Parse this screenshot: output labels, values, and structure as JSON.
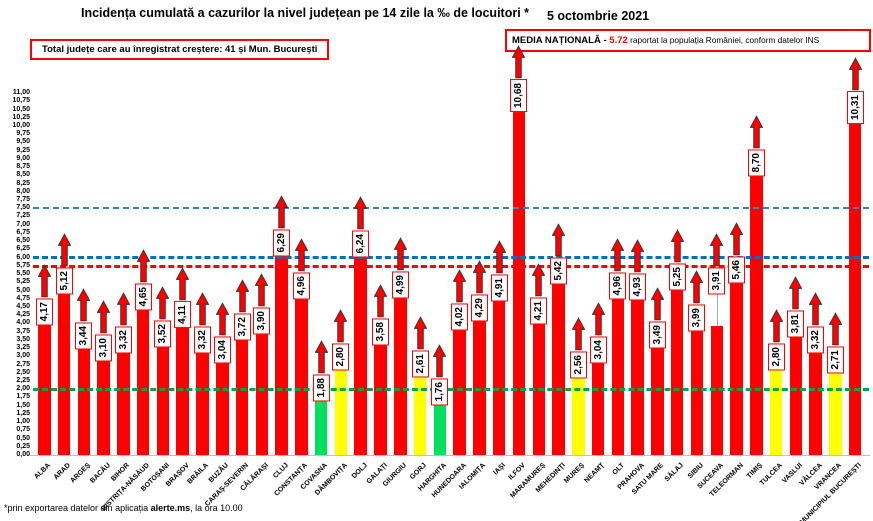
{
  "header": {
    "title": "Incidența cumulată a cazurilor la nivel județean pe 14 zile la ‰ de locuitori *",
    "date": "5 octombrie 2021"
  },
  "growth_box": {
    "text": "Total județe care au înregistrat creștere:  41 și Mun. București"
  },
  "media_box": {
    "label": "MEDIA NAȚIONALĂ",
    "separator": " - ",
    "value": "5.72",
    "suffix": " raportat la populația României, conform datelor INS"
  },
  "footnote": {
    "prefix": "*prin exportarea datelor din aplicația ",
    "bold": "alerte.ms",
    "suffix": ", la ora 10.00"
  },
  "chart_data": {
    "type": "bar",
    "title": "Incidența cumulată a cazurilor la nivel județean pe 14 zile la ‰ de locuitori *",
    "xlabel": "",
    "ylabel": "",
    "ylim": [
      0,
      11
    ],
    "ytick_step": 0.25,
    "grid": false,
    "legend": "none",
    "decimal_separator": ",",
    "categories": [
      "ALBA",
      "ARAD",
      "ARGEȘ",
      "BACĂU",
      "BIHOR",
      "BISTRIȚA-NĂSĂUD",
      "BOTOȘANI",
      "BRAȘOV",
      "BRĂILA",
      "BUZĂU",
      "CARAȘ-SEVERIN",
      "CĂLĂRAȘI",
      "CLUJ",
      "CONSTANȚA",
      "COVASNA",
      "DÂMBOVIȚA",
      "DOLJ",
      "GALAȚI",
      "GIURGIU",
      "GORJ",
      "HARGHITA",
      "HUNEDOARA",
      "IALOMIȚA",
      "IAȘI",
      "ILFOV",
      "MARAMUREȘ",
      "MEHEDINȚI",
      "MUREȘ",
      "NEAMȚ",
      "OLT",
      "PRAHOVA",
      "SATU MARE",
      "SĂLAJ",
      "SIBIU",
      "SUCEAVA",
      "TELEORMAN",
      "TIMIȘ",
      "TULCEA",
      "VASLUI",
      "VÂLCEA",
      "VRANCEA",
      "MUNICIPIUL BUCUREȘTI"
    ],
    "values": [
      4.17,
      5.12,
      3.44,
      3.1,
      3.32,
      4.65,
      3.52,
      4.11,
      3.32,
      3.04,
      3.72,
      3.9,
      6.29,
      4.96,
      1.88,
      2.8,
      6.24,
      3.58,
      4.99,
      2.61,
      1.76,
      4.02,
      4.29,
      4.91,
      10.68,
      4.21,
      5.42,
      2.56,
      3.04,
      4.96,
      4.93,
      3.49,
      5.25,
      3.99,
      3.91,
      5.46,
      8.7,
      2.8,
      3.81,
      3.32,
      2.71,
      10.31
    ],
    "bar_colors": [
      "#FF0000",
      "#FF0000",
      "#FF0000",
      "#FF0000",
      "#FF0000",
      "#FF0000",
      "#FF0000",
      "#FF0000",
      "#FF0000",
      "#FF0000",
      "#FF0000",
      "#FF0000",
      "#FF0000",
      "#FF0000",
      "#00E05E",
      "#FFFF00",
      "#FF0000",
      "#FF0000",
      "#FF0000",
      "#FFFF00",
      "#00E05E",
      "#FF0000",
      "#FF0000",
      "#FF0000",
      "#FF0000",
      "#FF0000",
      "#FF0000",
      "#FFFF00",
      "#FF0000",
      "#FF0000",
      "#FF0000",
      "#FF0000",
      "#FF0000",
      "#FF0000",
      "#FF0000",
      "#FF0000",
      "#FF0000",
      "#FFFF00",
      "#FF0000",
      "#FF0000",
      "#FFFF00",
      "#FF0000"
    ],
    "trend_arrow": "up-for-all-bars",
    "arrow_color": "#FF0000",
    "label_raise": {
      "SUCEAVA": 40
    },
    "reference_lines": [
      {
        "value": 7.5,
        "color": "#2E86C8",
        "style": "dashed",
        "weight": "thin"
      },
      {
        "value": 6.0,
        "color": "#0070C0",
        "style": "dashed",
        "weight": "thick"
      },
      {
        "value": 5.72,
        "color": "#FF0000",
        "style": "dashed",
        "weight": "thick",
        "name": "media-nationala"
      },
      {
        "value": 2.0,
        "color": "#00A550",
        "style": "dashed",
        "weight": "thick"
      }
    ]
  }
}
